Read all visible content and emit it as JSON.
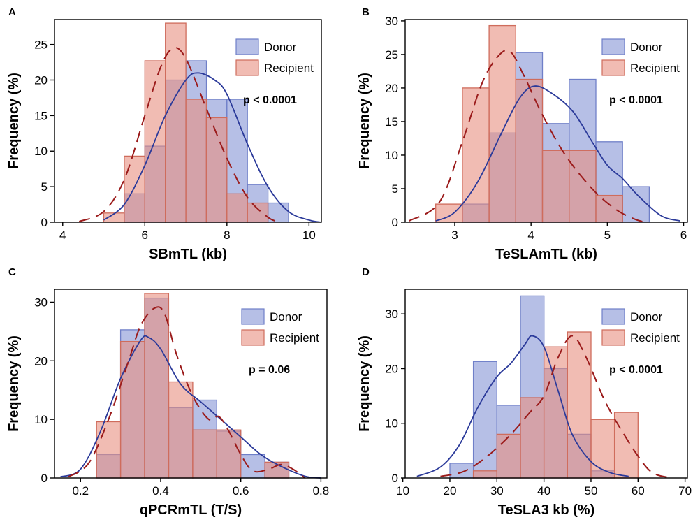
{
  "colors": {
    "donor_fill": "#9aa6dc",
    "donor_stroke": "#6f7fc8",
    "donor_curve": "#2b3a9a",
    "recipient_fill": "#e88f80",
    "recipient_stroke": "#cf6c5c",
    "recipient_curve": "#9b1b1b"
  },
  "chart_data": [
    {
      "panel": "A",
      "type": "bar",
      "xlabel": "SBmTL (kb)",
      "ylabel": "Frequency (%)",
      "xlim": [
        3.8,
        10.3
      ],
      "ylim": [
        0,
        28.5
      ],
      "xticks": [
        4,
        6,
        8,
        10
      ],
      "yticks": [
        0,
        5,
        10,
        15,
        20,
        25
      ],
      "pvalue": "p < 0.0001",
      "legend": {
        "placement": "top-right",
        "entries": [
          "Donor",
          "Recipient"
        ]
      },
      "series": [
        {
          "name": "Donor",
          "bin_edges": [
            5.0,
            5.5,
            6.0,
            6.5,
            7.0,
            7.5,
            8.0,
            8.5,
            9.0,
            9.5
          ],
          "values": [
            0,
            4,
            10.7,
            20,
            22.7,
            17.3,
            17.3,
            5.3,
            2.7
          ],
          "curve": [
            [
              5.0,
              0.3
            ],
            [
              5.5,
              2.5
            ],
            [
              6.0,
              8
            ],
            [
              6.5,
              15
            ],
            [
              7.0,
              20
            ],
            [
              7.3,
              21
            ],
            [
              7.7,
              20
            ],
            [
              8.0,
              18
            ],
            [
              8.5,
              11
            ],
            [
              9.0,
              5
            ],
            [
              9.5,
              1.5
            ],
            [
              10.0,
              0.3
            ],
            [
              10.3,
              0
            ]
          ]
        },
        {
          "name": "Recipient",
          "bin_edges": [
            5.0,
            5.5,
            6.0,
            6.5,
            7.0,
            7.5,
            8.0,
            8.5,
            9.0,
            9.5
          ],
          "values": [
            1.3,
            9.3,
            22.7,
            28,
            17.3,
            14.7,
            4,
            2.7,
            0
          ],
          "curve": [
            [
              4.4,
              0.1
            ],
            [
              5.0,
              1.5
            ],
            [
              5.5,
              6
            ],
            [
              6.0,
              15
            ],
            [
              6.4,
              22
            ],
            [
              6.7,
              24.5
            ],
            [
              7.0,
              23
            ],
            [
              7.5,
              16
            ],
            [
              8.0,
              9
            ],
            [
              8.5,
              3.5
            ],
            [
              9.0,
              0.7
            ],
            [
              9.3,
              0
            ]
          ]
        }
      ]
    },
    {
      "panel": "B",
      "type": "bar",
      "xlabel": "TeSLAmTL (kb)",
      "ylabel": "Frequency (%)",
      "xlim": [
        2.35,
        6.05
      ],
      "ylim": [
        0,
        30.2
      ],
      "xticks": [
        3,
        4,
        5,
        6
      ],
      "yticks": [
        0,
        5,
        10,
        15,
        20,
        25,
        30
      ],
      "pvalue": "p < 0.0001",
      "legend": {
        "placement": "top-right",
        "entries": [
          "Donor",
          "Recipient"
        ]
      },
      "series": [
        {
          "name": "Donor",
          "bin_edges": [
            2.75,
            3.1,
            3.45,
            3.8,
            4.15,
            4.5,
            4.85,
            5.2,
            5.55
          ],
          "values": [
            0,
            2.7,
            13.3,
            25.3,
            14.7,
            21.3,
            12,
            5.3
          ],
          "curve": [
            [
              2.75,
              0.2
            ],
            [
              3.0,
              1.5
            ],
            [
              3.3,
              6
            ],
            [
              3.6,
              13
            ],
            [
              3.85,
              18.5
            ],
            [
              4.05,
              20.3
            ],
            [
              4.3,
              19
            ],
            [
              4.55,
              16.5
            ],
            [
              4.8,
              12
            ],
            [
              5.0,
              8.5
            ],
            [
              5.2,
              6.5
            ],
            [
              5.4,
              4
            ],
            [
              5.7,
              1
            ],
            [
              5.95,
              0.2
            ]
          ]
        },
        {
          "name": "Recipient",
          "bin_edges": [
            2.75,
            3.1,
            3.45,
            3.8,
            4.15,
            4.5,
            4.85,
            5.2
          ],
          "values": [
            2.7,
            20,
            29.3,
            21.3,
            10.7,
            10.7,
            4,
            1.3
          ],
          "curve": [
            [
              2.4,
              0.2
            ],
            [
              2.8,
              3
            ],
            [
              3.1,
              12
            ],
            [
              3.35,
              20.5
            ],
            [
              3.55,
              24.5
            ],
            [
              3.72,
              25.5
            ],
            [
              3.9,
              22
            ],
            [
              4.15,
              16
            ],
            [
              4.45,
              10
            ],
            [
              4.8,
              5
            ],
            [
              5.1,
              2
            ],
            [
              5.35,
              0.5
            ],
            [
              5.5,
              0
            ]
          ]
        }
      ]
    },
    {
      "panel": "C",
      "type": "bar",
      "xlabel": "qPCRmTL (T/S)",
      "ylabel": "Frequency (%)",
      "xlim": [
        0.135,
        0.815
      ],
      "ylim": [
        0,
        32.2
      ],
      "xticks": [
        0.2,
        0.4,
        0.6,
        0.8
      ],
      "yticks": [
        0,
        10,
        20,
        30
      ],
      "pvalue": "p = 0.06",
      "legend": {
        "placement": "top-right",
        "entries": [
          "Donor",
          "Recipient"
        ]
      },
      "series": [
        {
          "name": "Donor",
          "bin_edges": [
            0.24,
            0.3,
            0.36,
            0.42,
            0.48,
            0.54,
            0.6,
            0.66,
            0.72
          ],
          "values": [
            4,
            25.3,
            30.7,
            12,
            13.3,
            8,
            4,
            2.7
          ],
          "curve": [
            [
              0.15,
              0.2
            ],
            [
              0.2,
              1.5
            ],
            [
              0.25,
              8
            ],
            [
              0.3,
              17
            ],
            [
              0.35,
              23.5
            ],
            [
              0.37,
              24
            ],
            [
              0.4,
              22
            ],
            [
              0.45,
              16
            ],
            [
              0.5,
              13
            ],
            [
              0.55,
              10
            ],
            [
              0.6,
              7
            ],
            [
              0.65,
              4
            ],
            [
              0.7,
              2
            ],
            [
              0.76,
              0.3
            ],
            [
              0.8,
              0
            ]
          ]
        },
        {
          "name": "Recipient",
          "bin_edges": [
            0.24,
            0.3,
            0.36,
            0.42,
            0.48,
            0.54,
            0.6,
            0.66,
            0.72
          ],
          "values": [
            9.6,
            23.3,
            31.5,
            16.4,
            8.2,
            8.2,
            0,
            2.7
          ],
          "curve": [
            [
              0.17,
              0.2
            ],
            [
              0.22,
              2.5
            ],
            [
              0.27,
              10
            ],
            [
              0.32,
              20
            ],
            [
              0.35,
              26
            ],
            [
              0.385,
              29
            ],
            [
              0.41,
              28
            ],
            [
              0.44,
              21
            ],
            [
              0.48,
              14
            ],
            [
              0.52,
              10
            ],
            [
              0.545,
              10.5
            ],
            [
              0.57,
              8
            ],
            [
              0.6,
              4
            ],
            [
              0.63,
              1.2
            ],
            [
              0.67,
              1.5
            ],
            [
              0.7,
              2.3
            ],
            [
              0.73,
              1.5
            ],
            [
              0.76,
              0
            ]
          ]
        }
      ]
    },
    {
      "panel": "D",
      "type": "bar",
      "xlabel": "TeSLA3 kb (%)",
      "ylabel": "Frequency (%)",
      "xlim": [
        10.5,
        70.5
      ],
      "ylim": [
        0,
        34.5
      ],
      "xticks": [
        10,
        20,
        30,
        40,
        50,
        60,
        70
      ],
      "yticks": [
        0,
        10,
        20,
        30
      ],
      "pvalue": "p < 0.0001",
      "legend": {
        "placement": "top-right",
        "entries": [
          "Donor",
          "Recipient"
        ]
      },
      "series": [
        {
          "name": "Donor",
          "bin_edges": [
            20,
            25,
            30,
            35,
            40,
            45,
            50,
            55,
            60
          ],
          "values": [
            2.7,
            21.3,
            13.3,
            33.3,
            20,
            8,
            1.3,
            0
          ],
          "curve": [
            [
              13,
              0.3
            ],
            [
              18,
              2
            ],
            [
              22,
              6
            ],
            [
              26,
              13
            ],
            [
              30,
              18.5
            ],
            [
              33,
              21
            ],
            [
              36,
              24.5
            ],
            [
              37.5,
              26
            ],
            [
              40,
              24
            ],
            [
              43,
              16
            ],
            [
              46,
              8
            ],
            [
              50,
              3
            ],
            [
              54,
              1
            ],
            [
              58,
              0.3
            ]
          ]
        },
        {
          "name": "Recipient",
          "bin_edges": [
            20,
            25,
            30,
            35,
            40,
            45,
            50,
            55,
            60
          ],
          "values": [
            0,
            1.3,
            8,
            14.7,
            24,
            26.7,
            10.7,
            12,
            0
          ],
          "curve": [
            [
              18,
              0.3
            ],
            [
              23,
              1.2
            ],
            [
              28,
              4
            ],
            [
              33,
              8
            ],
            [
              37,
              12
            ],
            [
              40,
              15
            ],
            [
              43,
              22
            ],
            [
              46,
              26
            ],
            [
              49,
              22
            ],
            [
              53,
              14
            ],
            [
              57,
              8
            ],
            [
              60,
              4
            ],
            [
              63,
              1
            ],
            [
              67,
              0
            ]
          ]
        }
      ]
    }
  ]
}
